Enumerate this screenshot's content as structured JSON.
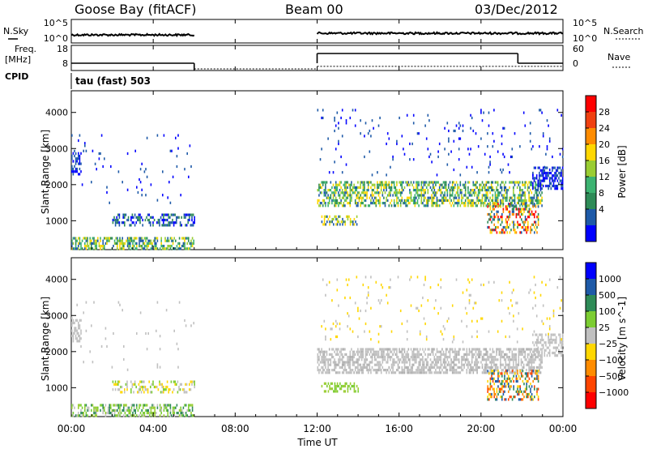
{
  "header": {
    "station": "Goose Bay (fitACF)",
    "beam": "Beam 00",
    "date": "03/Dec/2012"
  },
  "left_labels": {
    "nsky": "N.Sky",
    "freq": "Freq.",
    "mhz": "[MHz]",
    "cpid": "CPID"
  },
  "right_labels": {
    "nsearch": "N.Search",
    "nave": "Nave"
  },
  "cpid_text": "tau (fast) 503",
  "chart_data": [
    {
      "type": "line",
      "name": "noise",
      "ylabels_left": [
        "10^5",
        "10^0"
      ],
      "ylabels_right": [
        "10^5",
        "10^0"
      ],
      "segments": [
        {
          "x": [
            0.0,
            6.0
          ],
          "level": 0.55
        },
        {
          "x": [
            12.0,
            24.0
          ],
          "level": 0.62
        }
      ]
    },
    {
      "type": "line",
      "name": "frequency / nave",
      "yticks_left": [
        "18",
        "8"
      ],
      "yticks_right": [
        "60",
        "0"
      ],
      "ylim_freq": [
        8,
        18
      ],
      "ylim_nave": [
        0,
        60
      ],
      "freq_steps": [
        {
          "x": [
            0.0,
            6.0
          ],
          "value": 10.5
        },
        {
          "x": [
            12.0,
            21.8
          ],
          "value": 15.5
        },
        {
          "x": [
            21.8,
            24.0
          ],
          "value": 10.5
        }
      ],
      "nave_steps": [
        {
          "x": [
            6.0,
            12.0
          ],
          "value": 0
        },
        {
          "x": [
            12.0,
            24.0
          ],
          "value": 7
        }
      ]
    },
    {
      "type": "heatmap",
      "title": "Power",
      "xlabel": "Time UT",
      "ylabel": "Slant Range [km]",
      "xlim": [
        0,
        24
      ],
      "ylim": [
        200,
        4600
      ],
      "xticks": [
        "00:00",
        "04:00",
        "08:00",
        "12:00",
        "16:00",
        "20:00",
        "00:00"
      ],
      "yticks": [
        1000,
        2000,
        3000,
        4000
      ],
      "colorbar_label": "Power [dB]",
      "colorbar_ticks": [
        "28",
        "24",
        "20",
        "16",
        "12",
        "8",
        "4"
      ],
      "colorbar_colors": [
        "#ff0000",
        "#f04010",
        "#ff8c00",
        "#ffd700",
        "#9acd32",
        "#3cb371",
        "#2e8b57",
        "#1e5aa8",
        "#0000ff"
      ],
      "regions": [
        {
          "x": [
            0.0,
            6.0
          ],
          "y": [
            250,
            550
          ],
          "density": 0.55,
          "colors": [
            "#1e5aa8",
            "#2e8b57",
            "#3cb371",
            "#9acd32",
            "#ffd700"
          ]
        },
        {
          "x": [
            0.0,
            0.5
          ],
          "y": [
            2300,
            2900
          ],
          "density": 0.5,
          "colors": [
            "#1e5aa8",
            "#0000ff"
          ]
        },
        {
          "x": [
            2.0,
            6.0
          ],
          "y": [
            900,
            1200
          ],
          "density": 0.4,
          "colors": [
            "#1e5aa8",
            "#0000ff",
            "#2e8b57"
          ]
        },
        {
          "x": [
            12.0,
            23.0
          ],
          "y": [
            1400,
            2100
          ],
          "density": 0.55,
          "colors": [
            "#1e5aa8",
            "#2e8b57",
            "#3cb371",
            "#9acd32",
            "#ffd700"
          ]
        },
        {
          "x": [
            12.2,
            14.0
          ],
          "y": [
            900,
            1150
          ],
          "density": 0.45,
          "colors": [
            "#1e5aa8",
            "#ffd700",
            "#9acd32"
          ]
        },
        {
          "x": [
            20.3,
            22.8
          ],
          "y": [
            700,
            1500
          ],
          "density": 0.45,
          "colors": [
            "#ff8c00",
            "#ff0000",
            "#ffd700",
            "#2e8b57",
            "#1e5aa8"
          ]
        },
        {
          "x": [
            22.5,
            24.0
          ],
          "y": [
            1900,
            2500
          ],
          "density": 0.5,
          "colors": [
            "#1e5aa8",
            "#0000ff"
          ]
        },
        {
          "x": [
            12.0,
            24.0
          ],
          "y": [
            2300,
            4100
          ],
          "density": 0.03,
          "colors": [
            "#1e5aa8",
            "#0000ff"
          ]
        },
        {
          "x": [
            0.0,
            6.0
          ],
          "y": [
            1500,
            3400
          ],
          "density": 0.02,
          "colors": [
            "#1e5aa8",
            "#0000ff"
          ]
        }
      ]
    },
    {
      "type": "heatmap",
      "title": "Velocity",
      "xlabel": "Time UT",
      "ylabel": "Slant Range [km]",
      "xlim": [
        0,
        24
      ],
      "ylim": [
        200,
        4600
      ],
      "xticks": [
        "00:00",
        "04:00",
        "08:00",
        "12:00",
        "16:00",
        "20:00",
        "00:00"
      ],
      "yticks": [
        1000,
        2000,
        3000,
        4000
      ],
      "colorbar_label": "Velocity [m s^-1]",
      "colorbar_ticks": [
        "1000",
        "500",
        "100",
        "25",
        "−25",
        "−100",
        "−500",
        "−1000"
      ],
      "colorbar_colors": [
        "#0000ff",
        "#1e5aa8",
        "#2e8b57",
        "#7ccd32",
        "#c0c0c0",
        "#ffd700",
        "#ff8c00",
        "#ff4500",
        "#ff0000"
      ],
      "regions": [
        {
          "x": [
            0.0,
            6.0
          ],
          "y": [
            250,
            550
          ],
          "density": 0.55,
          "colors": [
            "#7ccd32",
            "#9acd32",
            "#c0c0c0",
            "#2e8b57"
          ]
        },
        {
          "x": [
            0.0,
            0.5
          ],
          "y": [
            2300,
            2900
          ],
          "density": 0.5,
          "colors": [
            "#c0c0c0"
          ]
        },
        {
          "x": [
            2.0,
            6.0
          ],
          "y": [
            900,
            1200
          ],
          "density": 0.35,
          "colors": [
            "#c0c0c0",
            "#ffd700",
            "#7ccd32"
          ]
        },
        {
          "x": [
            12.0,
            23.0
          ],
          "y": [
            1400,
            2100
          ],
          "density": 0.6,
          "colors": [
            "#c0c0c0",
            "#c0c0c0",
            "#c0c0c0",
            "#b0b0b0"
          ]
        },
        {
          "x": [
            12.2,
            14.0
          ],
          "y": [
            900,
            1150
          ],
          "density": 0.45,
          "colors": [
            "#7ccd32",
            "#9acd32"
          ]
        },
        {
          "x": [
            20.3,
            22.8
          ],
          "y": [
            700,
            1500
          ],
          "density": 0.45,
          "colors": [
            "#ff8c00",
            "#ff4500",
            "#ffd700",
            "#1e5aa8",
            "#2e8b57"
          ]
        },
        {
          "x": [
            22.5,
            24.0
          ],
          "y": [
            1900,
            2500
          ],
          "density": 0.5,
          "colors": [
            "#c0c0c0"
          ]
        },
        {
          "x": [
            12.0,
            24.0
          ],
          "y": [
            2300,
            4100
          ],
          "density": 0.03,
          "colors": [
            "#c0c0c0",
            "#ffd700"
          ]
        },
        {
          "x": [
            0.0,
            6.0
          ],
          "y": [
            1500,
            3400
          ],
          "density": 0.02,
          "colors": [
            "#c0c0c0"
          ]
        }
      ]
    }
  ]
}
